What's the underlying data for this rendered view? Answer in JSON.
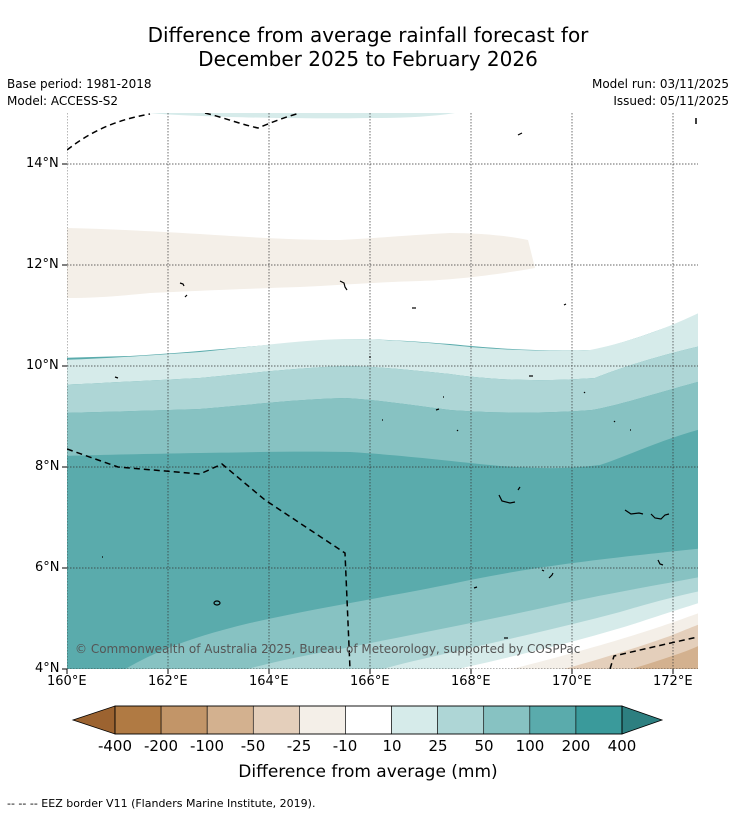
{
  "header": {
    "title_line1": "Difference from average rainfall forecast for",
    "title_line2": "December 2025 to February 2026",
    "base_period": "Base period: 1981-2018",
    "model": "Model: ACCESS-S2",
    "model_run": "Model run: 03/11/2025",
    "issued": "Issued: 05/11/2025"
  },
  "map": {
    "x_ticks": [
      "160°E",
      "162°E",
      "164°E",
      "166°E",
      "168°E",
      "170°E",
      "172°E"
    ],
    "y_ticks": [
      "14°N",
      "12°N",
      "10°N",
      "8°N",
      "6°N",
      "4°N"
    ],
    "copyright": "© Commonwealth of Australia 2025, Bureau of Meteorology, supported by COSPPac"
  },
  "colorbar": {
    "labels": [
      "-400",
      "-200",
      "-100",
      "-50",
      "-25",
      "-10",
      "10",
      "25",
      "50",
      "100",
      "200",
      "400"
    ],
    "colors": [
      "#9c6330",
      "#b07a43",
      "#c29568",
      "#d3b18f",
      "#e4cfbb",
      "#f4efe8",
      "#ffffff",
      "#d6ebea",
      "#aed6d6",
      "#87c2c2",
      "#5aabac",
      "#3a9a9b",
      "#2d7f80"
    ],
    "title": "Difference from average (mm)"
  },
  "footnote": "-- -- -- EEZ border V11 (Flanders Marine Institute, 2019)."
}
